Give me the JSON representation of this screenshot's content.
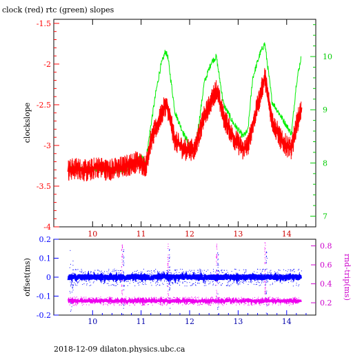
{
  "header": {
    "title": "clock (red) rtc (green) slopes"
  },
  "footer": {
    "caption": "2018-12-09  dilaton.physics.ubc.ca"
  },
  "colors": {
    "clock": "#ff0000",
    "rtc": "#00ee00",
    "offset": "#0000ff",
    "rndtrip": "#ee00ee",
    "axis_left_top": "#ff0000",
    "axis_right_top": "#00cc00",
    "axis_left_bottom": "#0000ff",
    "axis_right_bottom": "#cc00cc"
  },
  "chart_data": [
    {
      "type": "line",
      "title": "clock (red) rtc (green) slopes",
      "ylabel": "clockslope",
      "xlim": [
        9.2,
        14.6
      ],
      "ylim": [
        -4.0,
        -1.45
      ],
      "y2lim": [
        6.8,
        10.7
      ],
      "xticks": [
        "10",
        "11",
        "12",
        "13",
        "14"
      ],
      "yticks": [
        "-1.5",
        "-2",
        "-2.5",
        "-3",
        "-3.5",
        "-4"
      ],
      "y2ticks": [
        "10",
        "9",
        "8",
        "7"
      ],
      "grid": false,
      "series": [
        {
          "name": "clock",
          "axis": "left",
          "x": [
            9.5,
            9.7,
            9.9,
            10.1,
            10.3,
            10.5,
            10.7,
            10.9,
            11.0,
            11.1,
            11.2,
            11.3,
            11.4,
            11.5,
            11.55,
            11.7,
            11.9,
            12.1,
            12.2,
            12.3,
            12.45,
            12.55,
            12.7,
            12.9,
            13.1,
            13.2,
            13.3,
            13.45,
            13.55,
            13.7,
            13.9,
            14.1,
            14.2,
            14.3
          ],
          "y": [
            -3.3,
            -3.28,
            -3.32,
            -3.26,
            -3.3,
            -3.28,
            -3.25,
            -3.2,
            -3.22,
            -3.25,
            -2.95,
            -2.8,
            -2.65,
            -2.5,
            -2.55,
            -2.95,
            -3.05,
            -3.05,
            -2.85,
            -2.65,
            -2.45,
            -2.3,
            -2.65,
            -2.9,
            -3.05,
            -3.0,
            -2.75,
            -2.4,
            -2.15,
            -2.7,
            -2.95,
            -3.05,
            -2.75,
            -2.55
          ]
        },
        {
          "name": "rtc",
          "axis": "right",
          "x": [
            9.5,
            9.7,
            9.9,
            10.1,
            10.3,
            10.5,
            10.7,
            10.9,
            11.0,
            11.1,
            11.2,
            11.3,
            11.4,
            11.5,
            11.55,
            11.7,
            11.9,
            12.1,
            12.2,
            12.3,
            12.45,
            12.55,
            12.7,
            12.9,
            13.1,
            13.2,
            13.3,
            13.45,
            13.55,
            13.7,
            13.9,
            14.1,
            14.2,
            14.3
          ],
          "y": [
            7.9,
            7.88,
            7.9,
            7.87,
            7.88,
            7.85,
            7.86,
            8.05,
            8.1,
            8.05,
            8.7,
            9.3,
            9.8,
            10.1,
            10.0,
            8.95,
            8.5,
            8.2,
            8.8,
            9.5,
            9.9,
            10.0,
            9.1,
            8.75,
            8.5,
            8.6,
            9.6,
            10.05,
            10.25,
            9.15,
            8.85,
            8.55,
            9.5,
            10.0
          ]
        }
      ]
    },
    {
      "type": "scatter",
      "ylabel": "offset(ms)",
      "y2label": "rnd-trip(ms)",
      "xlim": [
        9.2,
        14.6
      ],
      "ylim": [
        -0.2,
        0.2
      ],
      "y2lim": [
        0.07,
        0.87
      ],
      "xticks": [
        "10",
        "11",
        "12",
        "13",
        "14"
      ],
      "yticks": [
        "0.2",
        "0.1",
        "0",
        "-0.1",
        "-0.2"
      ],
      "y2ticks": [
        "0.8",
        "0.6",
        "0.4",
        "0.2"
      ],
      "grid": false,
      "series": [
        {
          "name": "offset",
          "axis": "left",
          "x": [
            9.5,
            10.0,
            10.5,
            10.6,
            11.0,
            11.5,
            11.55,
            12.0,
            12.5,
            12.55,
            13.0,
            13.5,
            13.55,
            14.0,
            14.3
          ],
          "y": [
            0.0,
            0.0,
            0.005,
            -0.02,
            0.0,
            0.0,
            0.01,
            0.0,
            0.0,
            -0.03,
            0.0,
            0.0,
            0.01,
            0.0,
            0.0
          ]
        },
        {
          "name": "rnd-trip",
          "axis": "right",
          "x": [
            9.5,
            10.0,
            10.5,
            10.6,
            11.0,
            11.5,
            11.55,
            12.0,
            12.5,
            12.55,
            13.0,
            13.5,
            13.55,
            14.0,
            14.3
          ],
          "y": [
            0.22,
            0.22,
            0.22,
            0.8,
            0.22,
            0.22,
            0.84,
            0.22,
            0.22,
            0.8,
            0.22,
            0.22,
            0.84,
            0.22,
            0.22
          ]
        }
      ]
    }
  ]
}
